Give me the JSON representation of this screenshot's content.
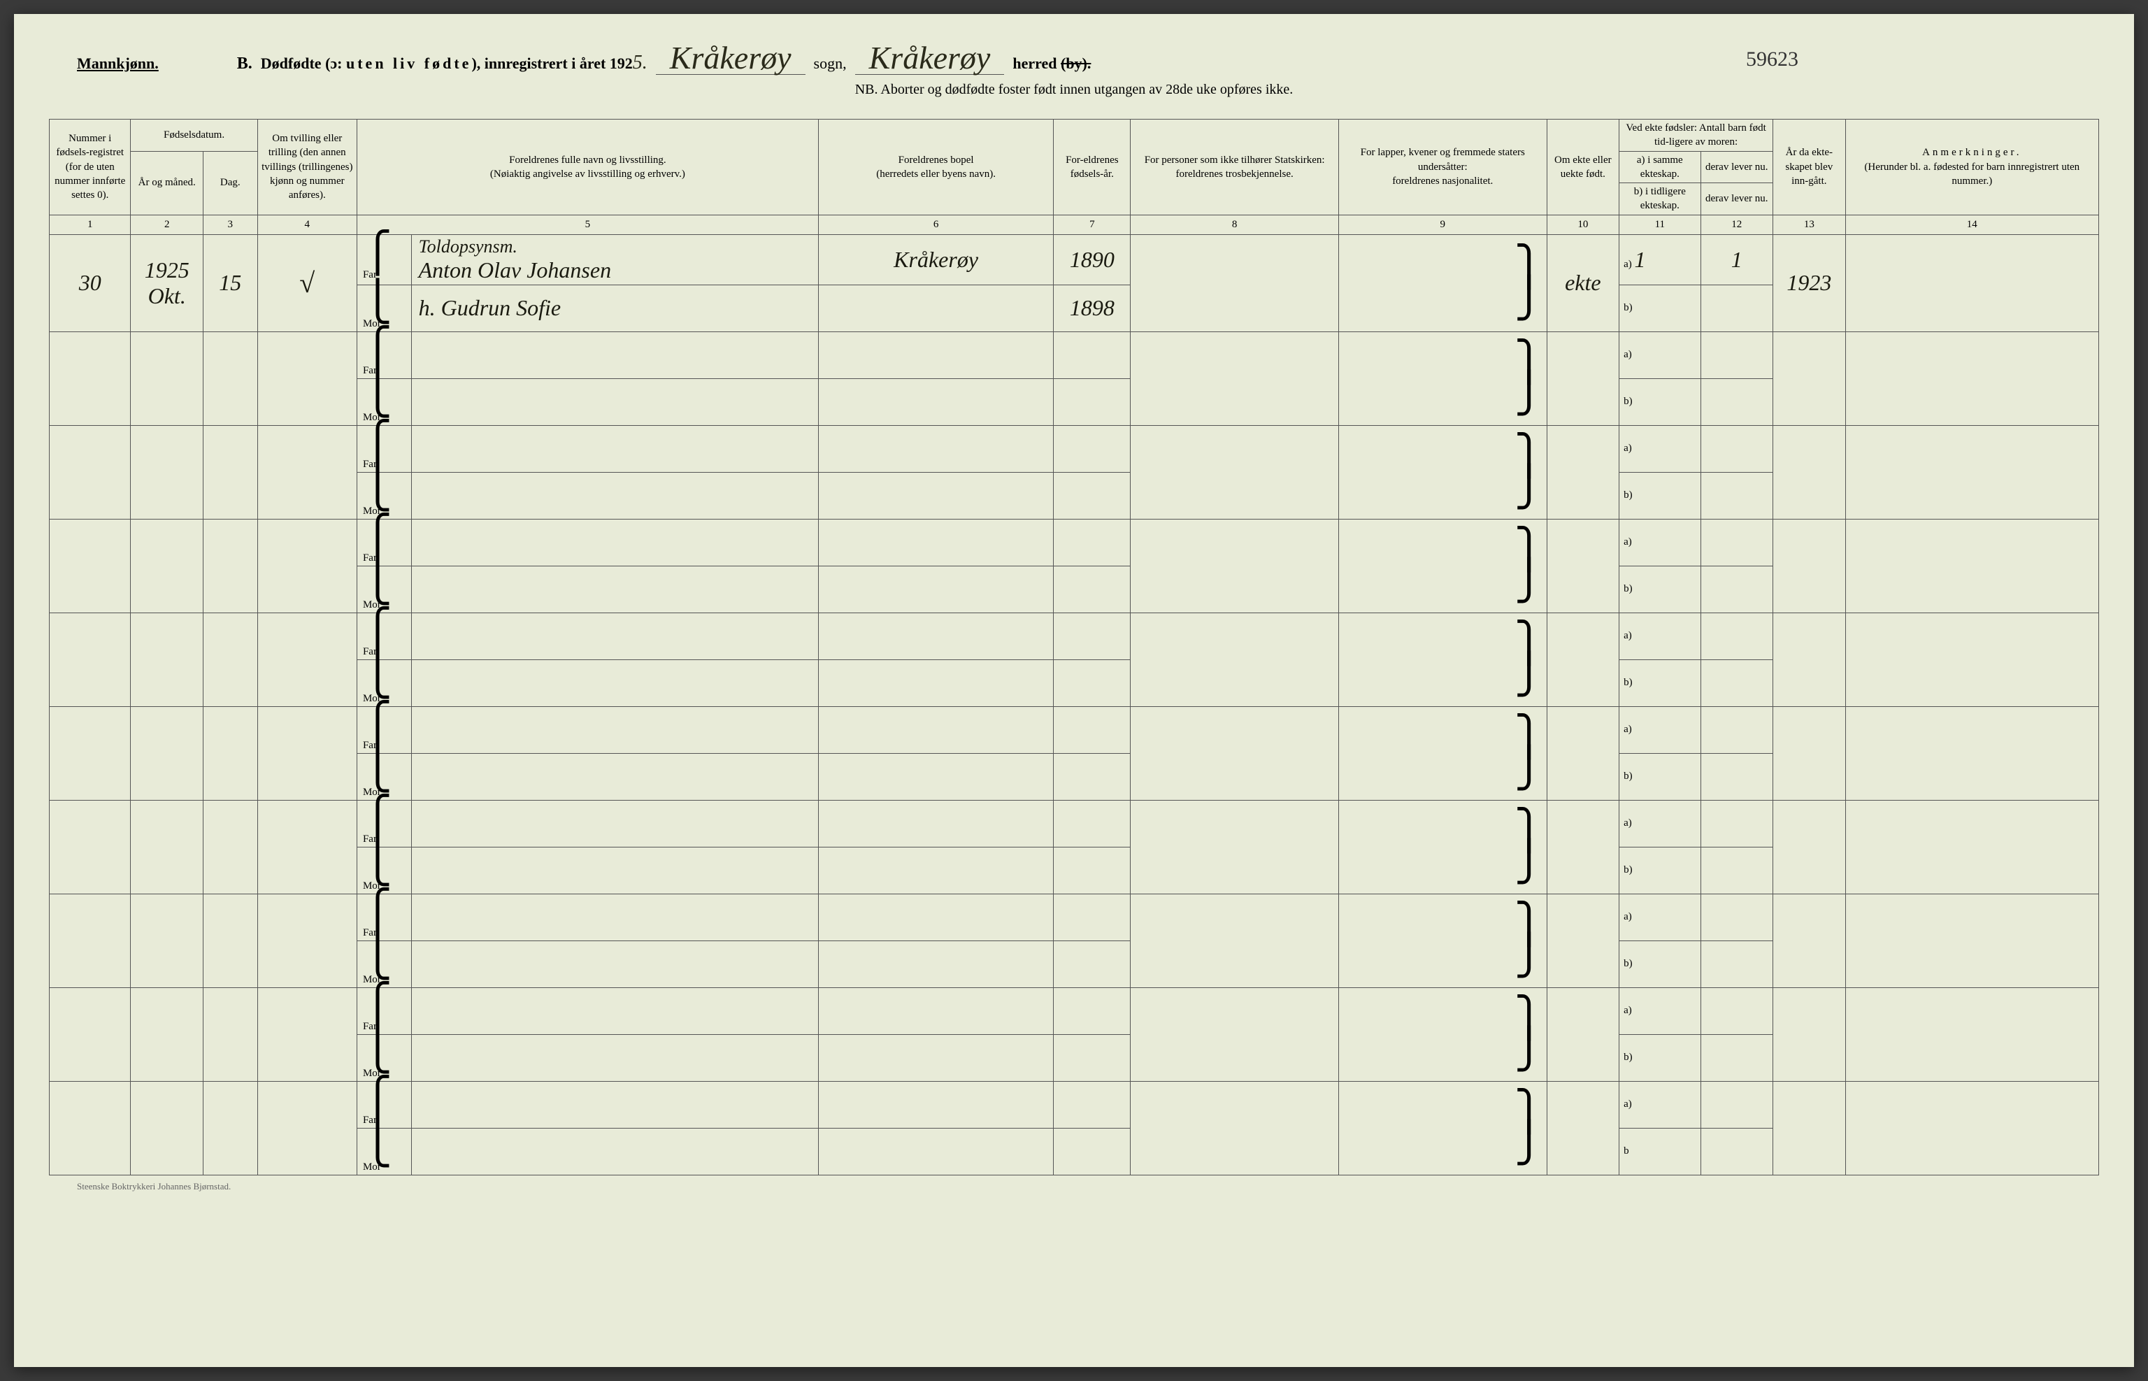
{
  "header": {
    "gender_label": "Mannkjønn.",
    "form_letter": "B.",
    "title_1": "Dødfødte (ɔ: ",
    "title_spaced": "uten liv fødte",
    "title_2": "), innregistrert i året 192",
    "year_suffix": "5.",
    "sogn_value": "Kråkerøy",
    "sogn_label": "sogn,",
    "annotation_number": "59623",
    "herred_value": "Kråkerøy",
    "herred_label": "herred",
    "herred_strike": "(by).",
    "subheading": "NB. Aborter og dødfødte foster født innen utgangen av 28de uke opføres ikke."
  },
  "columns": {
    "c1": "Nummer i fødsels-registret (for de uten nummer innførte settes 0).",
    "c2_group": "Fødselsdatum.",
    "c2": "År og måned.",
    "c3": "Dag.",
    "c4": "Om tvilling eller trilling (den annen tvillings (trillingenes) kjønn og nummer anføres).",
    "c5_a": "Foreldrenes fulle navn og livsstilling.",
    "c5_b": "(Nøiaktig angivelse av livsstilling og erhverv.)",
    "c6_a": "Foreldrenes bopel",
    "c6_b": "(herredets eller byens navn).",
    "c7": "For-eldrenes fødsels-år.",
    "c8_a": "For personer som ikke tilhører Statskirken:",
    "c8_b": "foreldrenes trosbekjennelse.",
    "c9_a": "For lapper, kvener og fremmede staters undersåtter:",
    "c9_b": "foreldrenes nasjonalitet.",
    "c10": "Om ekte eller uekte født.",
    "c11_12_top": "Ved ekte fødsler: Antall barn født tid-ligere av moren:",
    "c11_a": "a) i samme ekteskap.",
    "c11_b": "b) i tidligere ekteskap.",
    "c12_a": "derav lever nu.",
    "c12_b": "derav lever nu.",
    "c13": "År da ekte-skapet blev inn-gått.",
    "c14_a": "Anmerkninger.",
    "c14_b": "(Herunder bl. a. fødested for barn innregistrert uten nummer.)"
  },
  "colnums": [
    "1",
    "2",
    "3",
    "4",
    "5",
    "6",
    "7",
    "8",
    "9",
    "10",
    "11",
    "12",
    "13",
    "14"
  ],
  "labels": {
    "far": "Far",
    "mor": "Mor",
    "a": "a)",
    "b": "b)"
  },
  "row1": {
    "num": "30",
    "year": "1925",
    "month": "Okt.",
    "day": "15",
    "mark": "√",
    "occupation": "Toldopsynsm.",
    "far_name": "Anton Olav Johansen",
    "mor_name": "h. Gudrun Sofie",
    "bopel": "Kråkerøy",
    "far_year": "1890",
    "mor_year": "1898",
    "ekte": "ekte",
    "c11a": "1",
    "c12a": "1",
    "c13": "1923"
  },
  "footer": "Steenske Boktrykkeri Johannes Bjørnstad."
}
